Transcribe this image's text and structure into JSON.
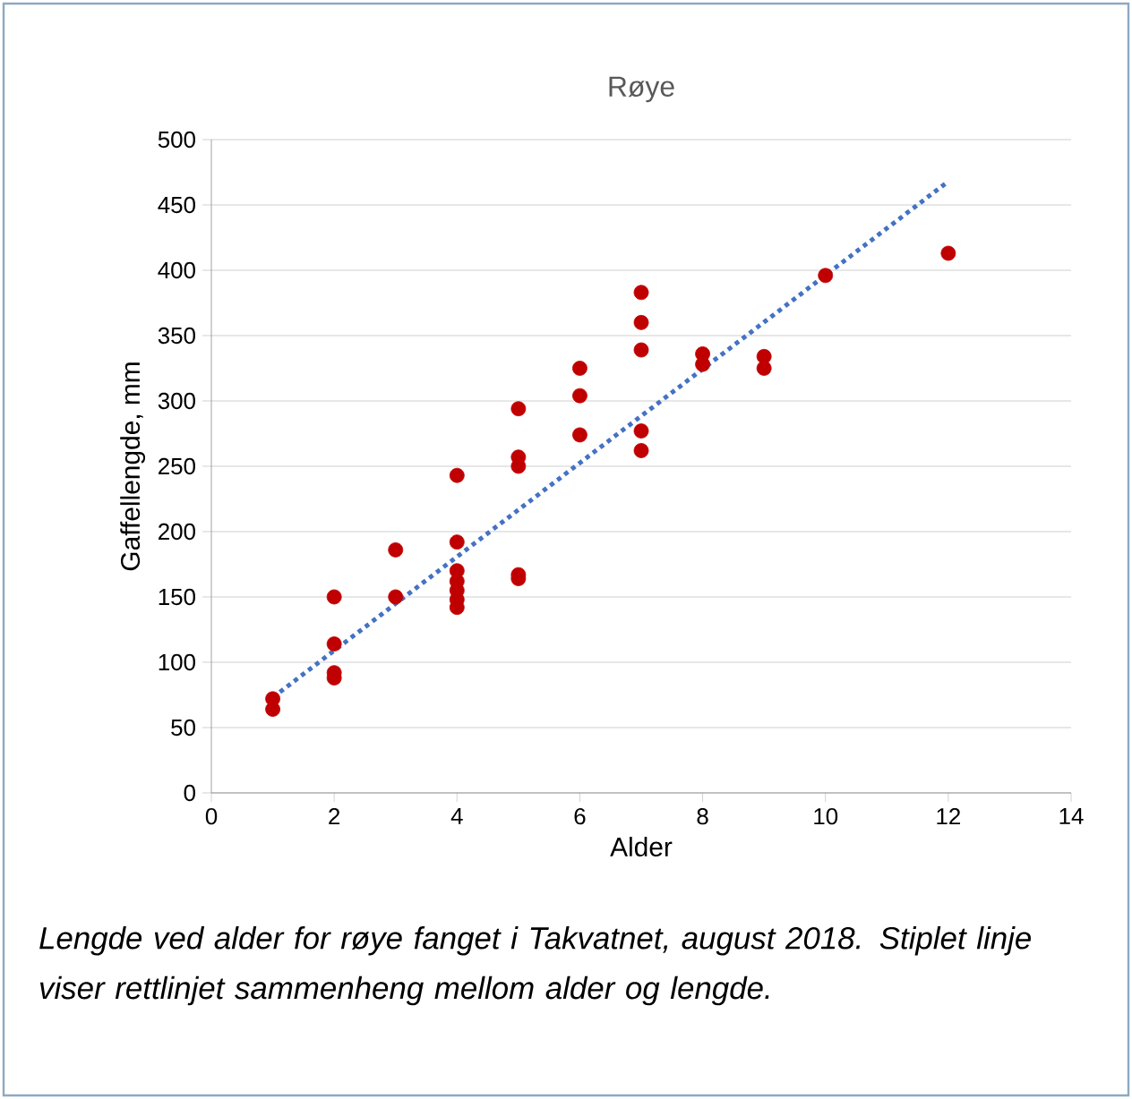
{
  "chart_data": {
    "type": "scatter",
    "title": "Røye",
    "xlabel": "Alder",
    "ylabel": "Gaffellengde, mm",
    "xlim": [
      0,
      14
    ],
    "ylim": [
      0,
      500
    ],
    "xticks": [
      0,
      2,
      4,
      6,
      8,
      10,
      12,
      14
    ],
    "yticks": [
      0,
      50,
      100,
      150,
      200,
      250,
      300,
      350,
      400,
      450,
      500
    ],
    "grid": "y",
    "marker": "circle",
    "series": [
      {
        "type": "scatter",
        "color": "#c00000",
        "x": [
          1,
          1,
          2,
          2,
          2,
          2,
          3,
          3,
          4,
          4,
          4,
          4,
          4,
          4,
          4,
          5,
          5,
          5,
          5,
          5,
          6,
          6,
          6,
          7,
          7,
          7,
          7,
          7,
          8,
          8,
          9,
          9,
          10,
          12
        ],
        "values": [
          72,
          64,
          150,
          114,
          92,
          88,
          186,
          150,
          243,
          192,
          170,
          162,
          155,
          148,
          142,
          294,
          257,
          250,
          167,
          164,
          325,
          304,
          274,
          383,
          360,
          339,
          277,
          262,
          336,
          328,
          334,
          325,
          396,
          413
        ]
      },
      {
        "type": "line",
        "marker": "none",
        "line_style": "dotted",
        "color": "#4472c4",
        "x": [
          1,
          12
        ],
        "values": [
          73,
          468
        ]
      }
    ],
    "annotations": [
      "Lengde ved alder for røye fanget i Takvatnet, august 2018. Stiplet linje viser rettlinjet sammenheng mellom alder og lengde."
    ]
  }
}
